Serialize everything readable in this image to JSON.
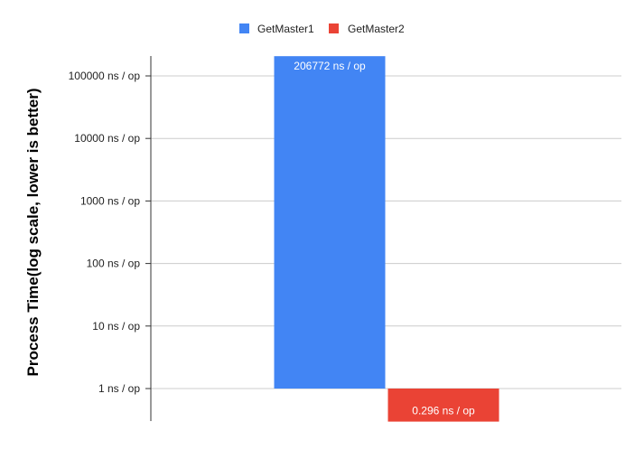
{
  "chart_data": {
    "type": "bar",
    "scale": "log",
    "title": "",
    "xlabel": "",
    "ylabel": "Process Time(log scale, lower is better)",
    "ylim": [
      0.17,
      200000
    ],
    "y_ticks": [
      1,
      10,
      100,
      1000,
      10000,
      100000
    ],
    "y_tick_labels": [
      "1 ns / op",
      "10 ns / op",
      "100 ns / op",
      "1000 ns / op",
      "10000 ns / op",
      "100000 ns / op"
    ],
    "bar_baseline": 1,
    "grid": true,
    "legend_position": "top",
    "series": [
      {
        "name": "GetMaster1",
        "color": "#4285F4",
        "values": [
          206772
        ],
        "data_label": "206772 ns / op",
        "label_color": "#ffffff"
      },
      {
        "name": "GetMaster2",
        "color": "#EA4335",
        "values": [
          0.296
        ],
        "data_label": "0.296 ns / op",
        "label_color": "#ffffff"
      }
    ]
  }
}
